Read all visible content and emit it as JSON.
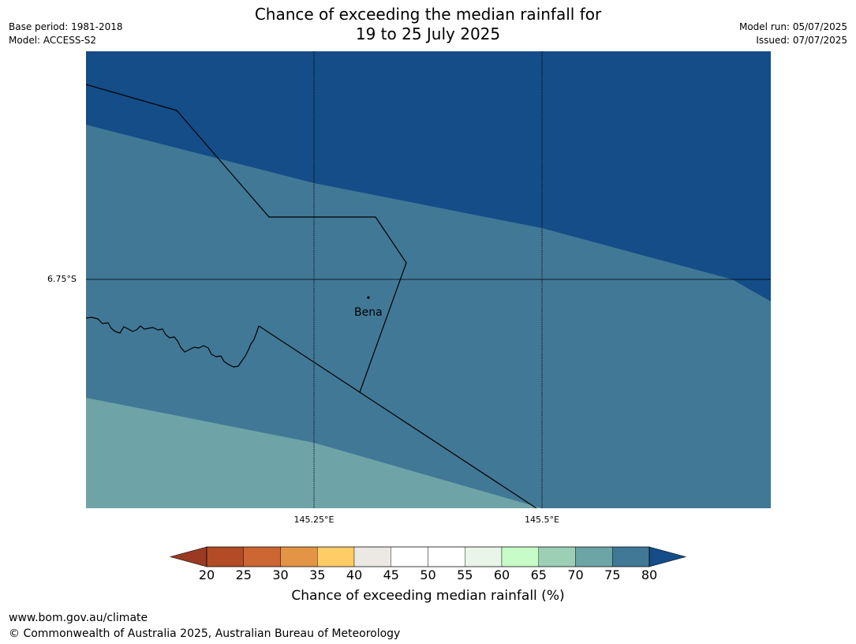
{
  "title_line1": "Chance of exceeding the median rainfall for",
  "title_line2": "19 to 25 July 2025",
  "base_period": "Base period: 1981-2018",
  "model": "Model: ACCESS-S2",
  "model_run": "Model run: 05/07/2025",
  "issued": "Issued: 07/07/2025",
  "axes": {
    "lat_label": "6.75°S",
    "lon_labels": [
      "145.25°E",
      "145.5°E"
    ]
  },
  "places": [
    {
      "name": "Bena"
    }
  ],
  "colorbar": {
    "title": "Chance of exceeding median rainfall (%)",
    "ticks": [
      "20",
      "25",
      "30",
      "35",
      "40",
      "45",
      "50",
      "55",
      "60",
      "65",
      "70",
      "75",
      "80"
    ],
    "under_color": "#9b3a22",
    "colors": [
      "#b24b26",
      "#cc6633",
      "#e39444",
      "#ffcc66",
      "#ece9e5",
      "#ffffff",
      "#ffffff",
      "#e8f5e8",
      "#c7fbc7",
      "#9ccfb6",
      "#6da4a6",
      "#407896"
    ],
    "over_color": "#144d87"
  },
  "map_colors": {
    "band_80_plus": "#144d87",
    "band_75_80": "#417896",
    "band_70_75": "#6ea4a7",
    "boundary": "#000000"
  },
  "footer": {
    "url": "www.bom.gov.au/climate",
    "copyright": "© Commonwealth of Australia 2025, Australian Bureau of Meteorology"
  }
}
